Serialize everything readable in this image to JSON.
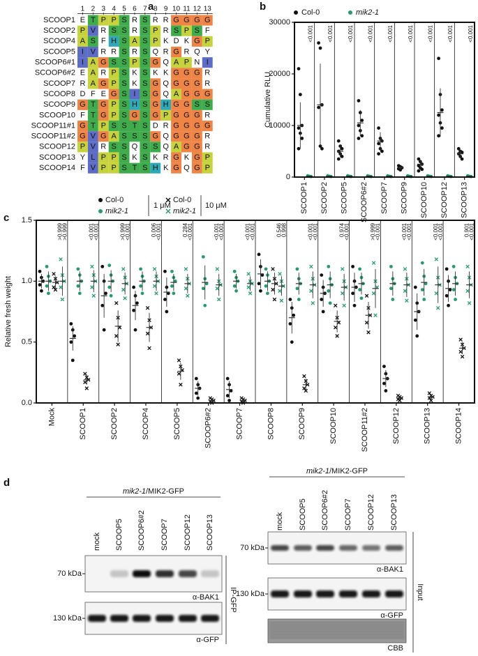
{
  "panel_labels": [
    "a",
    "b",
    "c",
    "d"
  ],
  "alignment": {
    "positions": [
      1,
      2,
      3,
      4,
      5,
      6,
      7,
      8,
      9,
      10,
      11,
      12,
      13
    ],
    "names": [
      "SCOOP1",
      "SCOOP2",
      "SCOOP4",
      "SCOOP5",
      "SCOOP6#1",
      "SCOOP6#2",
      "SCOOP7",
      "SCOOP8",
      "SCOOP9",
      "SCOOP10",
      "SCOOP11#1",
      "SCOOP11#2",
      "SCOOP12",
      "SCOOP13",
      "SCOOP14"
    ],
    "sequences": [
      "ETPPSRSRRGGGG",
      "PVRSSRSPRSPSF",
      "ASFHSASPKDKGP",
      "IVRRSRSQRGRQY",
      "IAGSSPSGQAPNI",
      "EARPSKSKKGGGR",
      "RAGPSKSGQGGGR",
      "DFEGSISGQAGGG",
      "GTGPSHSGHGGSS",
      "FTGPSGSGPGGGR",
      "GTPSSTSDRGGGG",
      "GVGASSSGQGGGR",
      "PVRSSQSSQAGGR",
      "YLPPSKSKRGKGP",
      "FVPPSTSHKGQGP"
    ],
    "residue_colors": {
      "G": "#ee8445",
      "S": "#3fab4c",
      "T": "#3fab4c",
      "P": "#c6d33f",
      "A": "#c6d33f",
      "V": "#5d6dc6",
      "I": "#5d6dc6",
      "L": "#5d6dc6",
      "H": "#2fa8b8"
    }
  },
  "chart_data": [
    {
      "type": "dot",
      "ylabel": "Cumulative RLU",
      "categories": [
        "SCOOP1",
        "SCOOP2",
        "SCOOP5",
        "SCOOP6#2",
        "SCOOP7",
        "SCOOP9",
        "SCOOP10",
        "SCOOP12",
        "SCOOP13"
      ],
      "series": [
        {
          "name": "Col-0",
          "color": "#111111",
          "marker": "dot",
          "points": [
            [
              21000,
              16000,
              10000,
              9500,
              8500,
              7500,
              5500
            ],
            [
              26000,
              25000,
              14000,
              13500,
              6000,
              5500
            ],
            [
              7000,
              6000,
              5500,
              5000,
              4500,
              4000,
              3500
            ],
            [
              14800,
              12500,
              11000,
              10000,
              9000,
              8000,
              7500
            ],
            [
              9500,
              7500,
              7000,
              6500,
              5500,
              5000,
              4500
            ],
            [
              2200,
              2000,
              1800,
              1600,
              1400
            ],
            [
              3500,
              3000,
              2500,
              2200,
              1800,
              1500,
              1200
            ],
            [
              23000,
              16000,
              13000,
              12000,
              10500,
              9500,
              8000
            ],
            [
              5500,
              5000,
              4800,
              4500,
              4000,
              3500
            ]
          ],
          "means": [
            10000,
            14000,
            5000,
            10500,
            7000,
            1800,
            2500,
            12500,
            4500
          ],
          "sd": [
            4500,
            8000,
            1200,
            2500,
            1700,
            300,
            800,
            4700,
            700
          ]
        },
        {
          "name": "mik2-1",
          "color": "#2a9a6e",
          "marker": "dot",
          "points": [
            [
              250,
              150,
              100
            ],
            [
              250,
              150,
              100
            ],
            [
              250,
              150,
              100
            ],
            [
              250,
              150,
              100
            ],
            [
              250,
              150,
              100
            ],
            [
              250,
              150,
              100
            ],
            [
              250,
              150,
              100
            ],
            [
              250,
              150,
              100
            ],
            [
              250,
              150,
              100
            ]
          ],
          "means": [
            170,
            170,
            170,
            170,
            170,
            170,
            170,
            170,
            170
          ],
          "sd": [
            60,
            60,
            60,
            60,
            60,
            60,
            60,
            60,
            60
          ]
        }
      ],
      "ylim": [
        0,
        30000
      ],
      "yticks": [
        0,
        10000,
        20000,
        30000
      ],
      "p_values": [
        "<0.001",
        "<0.001",
        "<0.001",
        "<0.001",
        "<0.001",
        "<0.001",
        "<0.001",
        "<0.001",
        "<0.001"
      ]
    },
    {
      "type": "dot",
      "ylabel": "Relative fresh weight",
      "concentrations": [
        "1 μM",
        "10 μM"
      ],
      "categories": [
        "Mock",
        "SCOOP1",
        "SCOOP2",
        "SCOOP4",
        "SCOOP5",
        "SCOOP6#2",
        "SCOOP7",
        "SCOOP8",
        "SCOOP9",
        "SCOOP10",
        "SCOOP11#2",
        "SCOOP12",
        "SCOOP13",
        "SCOOP14"
      ],
      "series": [
        {
          "name": "Col-0",
          "color": "#111111",
          "marker": "dot",
          "concentration": 0,
          "points": [
            [
              1.08,
              1.03,
              1.0,
              0.97,
              0.92
            ],
            [
              0.65,
              0.6,
              0.55,
              0.5,
              0.35
            ],
            [
              1.12,
              1.0,
              0.9,
              0.8,
              0.6
            ],
            [
              0.95,
              0.88,
              0.82,
              0.76,
              0.6
            ],
            [
              1.08,
              0.95,
              0.9,
              0.85,
              0.75
            ],
            [
              0.2,
              0.15,
              0.12,
              0.08,
              0.04
            ],
            [
              0.2,
              0.15,
              0.1,
              0.06,
              0.02
            ],
            [
              1.22,
              1.12,
              1.05,
              0.98,
              0.92
            ],
            [
              0.85,
              0.78,
              0.72,
              0.65,
              0.5
            ],
            [
              1.05,
              0.95,
              0.9,
              0.85,
              0.75
            ],
            [
              1.12,
              1.0,
              0.95,
              0.9,
              0.8
            ],
            [
              0.3,
              0.24,
              0.2,
              0.16,
              0.1
            ],
            [
              0.95,
              0.82,
              0.75,
              0.68,
              0.55
            ],
            [
              1.1,
              1.0,
              0.93,
              0.88,
              0.8
            ]
          ],
          "means": [
            1.0,
            0.53,
            0.88,
            0.8,
            0.91,
            0.12,
            0.11,
            1.06,
            0.7,
            0.9,
            0.95,
            0.2,
            0.75,
            0.94
          ],
          "sd": [
            0.06,
            0.1,
            0.18,
            0.12,
            0.12,
            0.06,
            0.07,
            0.12,
            0.13,
            0.11,
            0.12,
            0.07,
            0.15,
            0.11
          ]
        },
        {
          "name": "mik2-1",
          "color": "#2a9a6e",
          "marker": "dot",
          "concentration": 0,
          "points": [
            [
              1.12,
              1.04,
              1.0,
              0.96,
              0.9
            ],
            [
              1.1,
              1.05,
              1.0,
              0.96,
              0.9
            ],
            [
              1.13,
              1.05,
              1.0,
              0.95,
              0.88
            ],
            [
              1.1,
              1.04,
              1.0,
              0.96,
              0.9
            ],
            [
              1.08,
              1.03,
              1.0,
              0.96,
              0.9
            ],
            [
              1.2,
              1.02,
              0.98,
              0.94,
              0.8
            ],
            [
              1.08,
              1.03,
              1.0,
              0.96,
              0.92
            ],
            [
              1.1,
              1.05,
              1.0,
              0.96,
              0.9
            ],
            [
              1.1,
              1.02,
              0.98,
              0.94,
              0.85
            ],
            [
              1.12,
              1.02,
              0.97,
              0.92,
              0.82
            ],
            [
              1.1,
              1.03,
              0.98,
              0.93,
              0.86
            ],
            [
              1.12,
              1.02,
              0.98,
              0.94,
              0.85
            ],
            [
              1.15,
              1.04,
              0.98,
              0.93,
              0.85
            ],
            [
              1.12,
              1.03,
              0.98,
              0.93,
              0.85
            ]
          ],
          "means": [
            1.0,
            1.0,
            1.0,
            1.0,
            0.99,
            0.99,
            1.0,
            1.0,
            0.98,
            0.97,
            0.98,
            0.98,
            0.99,
            0.98
          ],
          "sd": [
            0.08,
            0.08,
            0.09,
            0.08,
            0.07,
            0.14,
            0.06,
            0.08,
            0.09,
            0.11,
            0.09,
            0.1,
            0.11,
            0.1
          ]
        },
        {
          "name": "Col-0",
          "color": "#111111",
          "marker": "cross",
          "concentration": 1,
          "points": [
            [
              1.06,
              1.02,
              0.99,
              0.95,
              0.93
            ],
            [
              0.24,
              0.21,
              0.19,
              0.17,
              0.12
            ],
            [
              0.82,
              0.7,
              0.62,
              0.55,
              0.48
            ],
            [
              0.78,
              0.68,
              0.62,
              0.57,
              0.45
            ],
            [
              0.35,
              0.3,
              0.27,
              0.24,
              0.15
            ],
            [
              0.04,
              0.03,
              0.02,
              0.01,
              0.0
            ],
            [
              0.04,
              0.03,
              0.02,
              0.01,
              0.0
            ],
            [
              1.1,
              1.02,
              0.98,
              0.93,
              0.85
            ],
            [
              0.22,
              0.18,
              0.15,
              0.12,
              0.1
            ],
            [
              0.8,
              0.7,
              0.66,
              0.62,
              0.55
            ],
            [
              0.88,
              0.78,
              0.72,
              0.66,
              0.58
            ],
            [
              0.06,
              0.05,
              0.04,
              0.03,
              0.02
            ],
            [
              0.08,
              0.06,
              0.05,
              0.04,
              0.02
            ],
            [
              0.52,
              0.48,
              0.45,
              0.42,
              0.38
            ]
          ],
          "means": [
            0.99,
            0.19,
            0.63,
            0.62,
            0.26,
            0.02,
            0.02,
            0.98,
            0.15,
            0.67,
            0.72,
            0.04,
            0.05,
            0.45
          ],
          "sd": [
            0.05,
            0.04,
            0.13,
            0.12,
            0.07,
            0.015,
            0.015,
            0.09,
            0.05,
            0.09,
            0.11,
            0.015,
            0.02,
            0.05
          ]
        },
        {
          "name": "mik2-1",
          "color": "#2a9a6e",
          "marker": "cross",
          "concentration": 1,
          "points": [
            [
              1.18,
              1.05,
              1.0,
              0.95,
              0.85
            ],
            [
              1.12,
              1.05,
              1.0,
              0.95,
              0.88
            ],
            [
              1.1,
              1.03,
              0.98,
              0.93,
              0.86
            ],
            [
              1.1,
              1.04,
              1.0,
              0.96,
              0.9
            ],
            [
              1.1,
              1.02,
              0.98,
              0.94,
              0.88
            ],
            [
              1.1,
              1.0,
              0.97,
              0.94,
              0.85
            ],
            [
              1.06,
              1.0,
              0.98,
              0.95,
              0.9
            ],
            [
              1.06,
              1.0,
              0.96,
              0.92,
              0.84
            ],
            [
              1.12,
              1.02,
              0.97,
              0.92,
              0.82
            ],
            [
              1.1,
              1.0,
              0.95,
              0.9,
              0.8
            ],
            [
              1.15,
              1.0,
              0.95,
              0.9,
              0.72
            ],
            [
              1.1,
              1.02,
              0.97,
              0.92,
              0.84
            ],
            [
              1.18,
              1.03,
              0.97,
              0.9,
              0.78
            ],
            [
              1.12,
              1.03,
              0.97,
              0.92,
              0.82
            ]
          ],
          "means": [
            1.0,
            1.0,
            0.98,
            1.0,
            0.98,
            0.97,
            0.98,
            0.96,
            0.97,
            0.95,
            0.94,
            0.97,
            0.97,
            0.97
          ],
          "sd": [
            0.12,
            0.09,
            0.09,
            0.08,
            0.08,
            0.09,
            0.06,
            0.08,
            0.11,
            0.11,
            0.16,
            0.1,
            0.15,
            0.11
          ]
        }
      ],
      "ylim": [
        0,
        1.5
      ],
      "yticks": [
        {
          "value": 0,
          "label": "0.0"
        },
        0.5,
        {
          "value": 1,
          "label": "1.0"
        },
        1.5
      ],
      "p_values": [
        [
          ">0.999",
          ">0.999"
        ],
        [
          "<0.001",
          "<0.001"
        ],
        [
          ">0.999",
          "<0.001"
        ],
        [
          "0.006",
          "<0.001"
        ],
        [
          "0.284",
          "<0.001"
        ],
        [
          "<0.001",
          "<0.001"
        ],
        [
          "<0.001",
          "<0.001"
        ],
        [
          "0.546",
          "0.998"
        ],
        [
          "<0.001",
          "<0.001"
        ],
        [
          "0.974",
          "<0.001"
        ],
        [
          ">0.999",
          "<0.001"
        ],
        [
          "<0.001",
          "<0.001"
        ],
        [
          "<0.001",
          "<0.001"
        ],
        [
          "0.901",
          "<0.001"
        ]
      ]
    }
  ],
  "blots": {
    "left": {
      "genotype": "mik2-1",
      "construct": "/MIK2-GFP",
      "lanes": [
        "mock",
        "SCOOP5",
        "SCOOP6#2",
        "SCOOP7",
        "SCOOP12",
        "SCOOP13"
      ],
      "markers": [
        "70 kDa",
        "130 kDa"
      ],
      "antibodies": [
        "α-BAK1",
        "α-GFP"
      ],
      "side_label": "IP-GFP"
    },
    "right": {
      "genotype": "mik2-1",
      "construct": "/MIK2-GFP",
      "lanes": [
        "mock",
        "SCOOP5",
        "SCOOP6#2",
        "SCOOP7",
        "SCOOP12",
        "SCOOP13"
      ],
      "markers": [
        "70 kDa",
        "130 kDa"
      ],
      "antibodies": [
        "α-BAK1",
        "α-GFP",
        "CBB"
      ],
      "side_label": "Input"
    }
  }
}
